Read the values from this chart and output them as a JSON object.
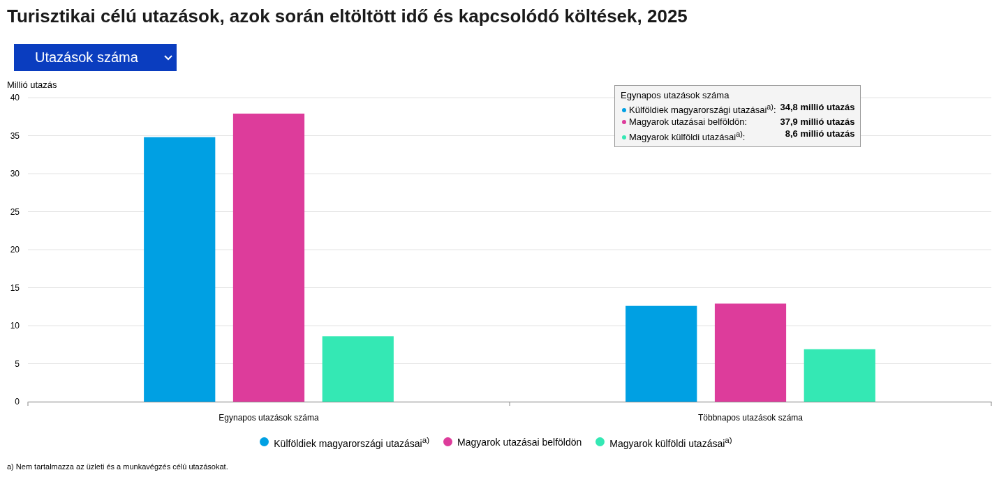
{
  "chart_data": {
    "type": "bar",
    "title": "Turisztikai célú utazások, azok során eltöltött idő és kapcsolódó költések, 2025",
    "ylabel": "Millió utazás",
    "categories": [
      "Egynapos utazások száma",
      "Többnapos utazások száma"
    ],
    "series": [
      {
        "name": "Külföldiek magyarországi utazásai$^{a)}$",
        "color": "#00a0e3",
        "values": [
          34.8,
          12.6
        ]
      },
      {
        "name": "Magyarok utazásai belföldön",
        "color": "#dd3c9b",
        "values": [
          37.9,
          12.9
        ]
      },
      {
        "name": "Magyarok külföldi utazásai$^{a)}$",
        "color": "#34e8b4",
        "values": [
          8.6,
          6.9
        ]
      }
    ],
    "ylim": [
      0,
      40
    ],
    "yticks": [
      0,
      5,
      10,
      15,
      20,
      25,
      30,
      35,
      40
    ],
    "grid": "y",
    "legend": "bottom",
    "annotations": [
      "Utazások száma",
      "Egynapos utazások száma",
      "Külföldiek magyarországi utazásai$^{a)}$: 34,8 millió utazás",
      "Magyarok utazásai belföldön: 37,9 millió utazás",
      "Magyarok külföldi utazásai$^{a)}$: 8,6 millió utazás",
      "a) Nem tartalmazza az üzleti és a munkavégzés célú utazásokat."
    ]
  }
}
